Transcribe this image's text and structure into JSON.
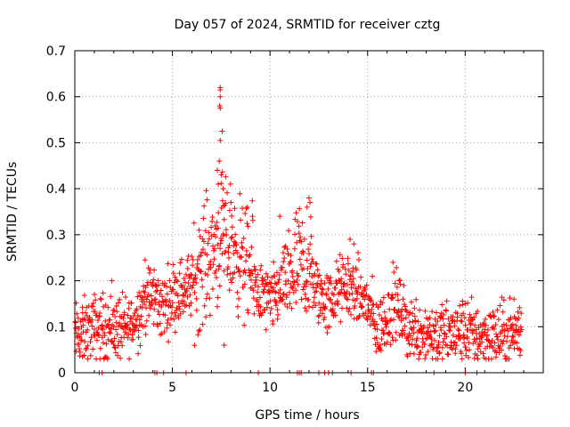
{
  "chart_data": {
    "type": "scatter",
    "title": "Day 057 of 2024, SRMTID for receiver cztg",
    "xlabel": "GPS time / hours",
    "ylabel": "SRMTID / TECUs",
    "xlim": [
      0,
      24
    ],
    "ylim": [
      0,
      0.7
    ],
    "x_ticks": [
      0,
      5,
      10,
      15,
      20
    ],
    "y_ticks": [
      0,
      0.1,
      0.2,
      0.3,
      0.4,
      0.5,
      0.6,
      0.7
    ],
    "x_tick_labels": [
      "0",
      "5",
      "10",
      "15",
      "20"
    ],
    "y_tick_labels": [
      "0",
      "0.1",
      "0.2",
      "0.3",
      "0.4",
      "0.5",
      "0.6",
      "0.7"
    ],
    "grid": true,
    "marker": "+",
    "color": "#ff0000",
    "profile": [
      {
        "x": 0.0,
        "y": 0.08
      },
      {
        "x": 0.5,
        "y": 0.09
      },
      {
        "x": 1.0,
        "y": 0.1
      },
      {
        "x": 1.5,
        "y": 0.1
      },
      {
        "x": 2.0,
        "y": 0.1
      },
      {
        "x": 2.5,
        "y": 0.09
      },
      {
        "x": 3.0,
        "y": 0.11
      },
      {
        "x": 3.5,
        "y": 0.15
      },
      {
        "x": 4.0,
        "y": 0.17
      },
      {
        "x": 4.5,
        "y": 0.14
      },
      {
        "x": 5.0,
        "y": 0.17
      },
      {
        "x": 5.5,
        "y": 0.18
      },
      {
        "x": 6.0,
        "y": 0.19
      },
      {
        "x": 6.5,
        "y": 0.24
      },
      {
        "x": 7.0,
        "y": 0.26
      },
      {
        "x": 7.5,
        "y": 0.29
      },
      {
        "x": 8.0,
        "y": 0.28
      },
      {
        "x": 8.5,
        "y": 0.25
      },
      {
        "x": 9.0,
        "y": 0.22
      },
      {
        "x": 9.5,
        "y": 0.17
      },
      {
        "x": 10.0,
        "y": 0.15
      },
      {
        "x": 10.5,
        "y": 0.18
      },
      {
        "x": 11.0,
        "y": 0.21
      },
      {
        "x": 11.5,
        "y": 0.23
      },
      {
        "x": 12.0,
        "y": 0.22
      },
      {
        "x": 12.5,
        "y": 0.17
      },
      {
        "x": 13.0,
        "y": 0.15
      },
      {
        "x": 13.5,
        "y": 0.18
      },
      {
        "x": 14.0,
        "y": 0.19
      },
      {
        "x": 14.5,
        "y": 0.17
      },
      {
        "x": 15.0,
        "y": 0.15
      },
      {
        "x": 15.5,
        "y": 0.09
      },
      {
        "x": 16.0,
        "y": 0.12
      },
      {
        "x": 16.5,
        "y": 0.15
      },
      {
        "x": 17.0,
        "y": 0.1
      },
      {
        "x": 18.0,
        "y": 0.09
      },
      {
        "x": 19.0,
        "y": 0.08
      },
      {
        "x": 20.0,
        "y": 0.09
      },
      {
        "x": 21.0,
        "y": 0.08
      },
      {
        "x": 22.0,
        "y": 0.08
      },
      {
        "x": 22.9,
        "y": 0.09
      }
    ],
    "points_per_hour": 60,
    "spread": 0.035,
    "x_end": 22.9,
    "spikes": [
      {
        "x": 7.45,
        "y": 0.62
      },
      {
        "x": 7.45,
        "y": 0.615
      },
      {
        "x": 7.45,
        "y": 0.6
      },
      {
        "x": 7.42,
        "y": 0.58
      },
      {
        "x": 7.45,
        "y": 0.575
      },
      {
        "x": 7.55,
        "y": 0.525
      },
      {
        "x": 7.45,
        "y": 0.505
      },
      {
        "x": 7.4,
        "y": 0.46
      },
      {
        "x": 7.3,
        "y": 0.44
      },
      {
        "x": 7.5,
        "y": 0.43
      },
      {
        "x": 7.35,
        "y": 0.41
      },
      {
        "x": 7.6,
        "y": 0.4
      },
      {
        "x": 12.0,
        "y": 0.38
      },
      {
        "x": 12.05,
        "y": 0.37
      },
      {
        "x": 8.0,
        "y": 0.37
      },
      {
        "x": 11.9,
        "y": 0.36
      },
      {
        "x": 9.1,
        "y": 0.34
      },
      {
        "x": 10.5,
        "y": 0.34
      },
      {
        "x": 16.3,
        "y": 0.24
      },
      {
        "x": 3.6,
        "y": 0.245
      },
      {
        "x": 14.3,
        "y": 0.28
      },
      {
        "x": 14.1,
        "y": 0.29
      },
      {
        "x": 7.65,
        "y": 0.06
      },
      {
        "x": 1.9,
        "y": 0.2
      },
      {
        "x": 22.5,
        "y": 0.16
      },
      {
        "x": 20.0,
        "y": 0.15
      },
      {
        "x": 0.4,
        "y": 0.035
      }
    ],
    "zero_points": [
      1.25,
      1.4,
      4.1,
      4.2,
      4.55,
      5.7,
      9.4,
      11.4,
      11.5,
      11.6,
      12.5,
      12.8,
      13.0,
      13.2,
      14.15,
      15.2,
      15.3,
      18.4,
      20.0,
      20.6
    ]
  }
}
